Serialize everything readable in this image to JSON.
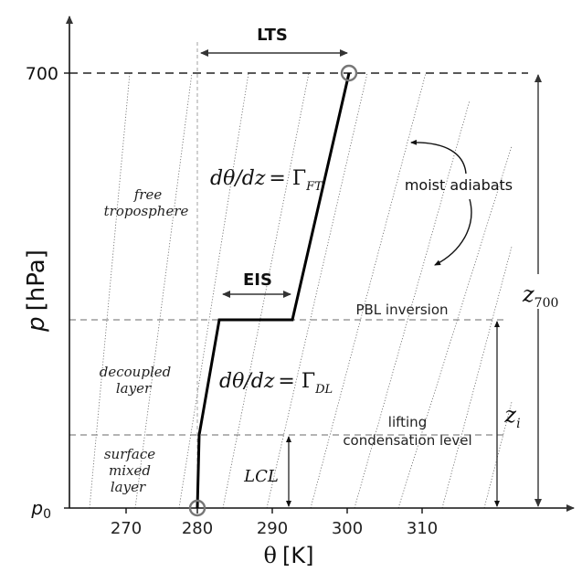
{
  "axes": {
    "x_label_symbol": "θ",
    "x_label_unit": "[K]",
    "y_label_symbol": "p",
    "y_label_unit": "[hPa]",
    "x_ticks": [
      "270",
      "280",
      "290",
      "300",
      "310"
    ],
    "y_tick_top": "700",
    "y_tick_bottom_main": "p",
    "y_tick_bottom_sub": "0"
  },
  "labels": {
    "lts": "LTS",
    "eis": "EIS",
    "free_troposphere_1": "free",
    "free_troposphere_2": "troposphere",
    "decoupled_1": "decoupled",
    "decoupled_2": "layer",
    "surface_1": "surface",
    "surface_2": "mixed",
    "surface_3": "layer",
    "moist_adiabats": "moist adiabats",
    "pbl_inversion": "PBL inversion",
    "lifting_1": "lifting",
    "lifting_2": "condensation level",
    "lcl": "LCL",
    "z700_main": "z",
    "z700_sub": "700",
    "zi_main": "z",
    "zi_sub": "i",
    "eq_ft_lhs": "dθ/dz",
    "eq_ft_eq": "= Γ",
    "eq_ft_sub": "FT",
    "eq_dl_lhs": "dθ/dz",
    "eq_dl_eq": "= Γ",
    "eq_dl_sub": "DL"
  },
  "colors": {
    "profile": "#000000",
    "dashed": "#777777",
    "adiabat": "#555555",
    "arrow": "#333333"
  }
}
